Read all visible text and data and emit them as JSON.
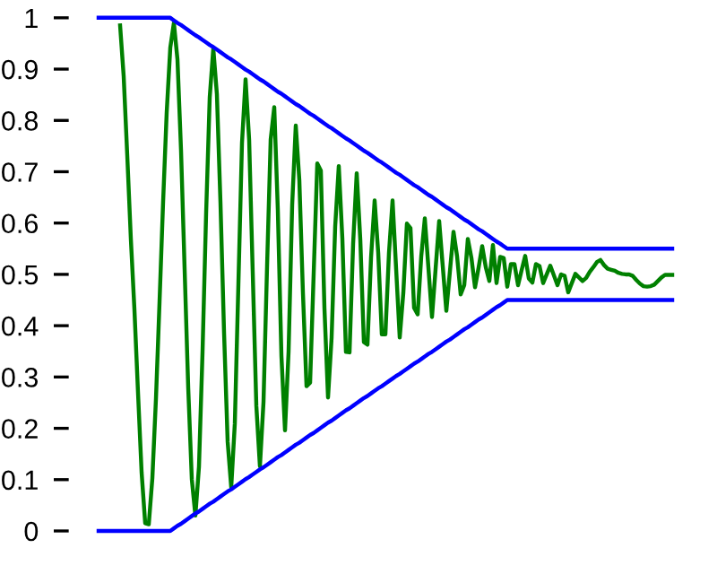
{
  "chart_data": {
    "type": "line",
    "tick_labels": "y",
    "marker": "none",
    "line_style": "solid",
    "grid": false,
    "ylim": [
      0,
      1
    ],
    "yticks": [
      0,
      0.1,
      0.2,
      0.3,
      0.4,
      0.5,
      0.6,
      0.7,
      0.8,
      0.9,
      1
    ],
    "categories": [
      null,
      null,
      null,
      null,
      null,
      null,
      null,
      null,
      null,
      null,
      null,
      null,
      null,
      null,
      null,
      null,
      null,
      null,
      null,
      null,
      null,
      null,
      null,
      null,
      null,
      null,
      null,
      null,
      null,
      null,
      null,
      null,
      null,
      null,
      null,
      null,
      null,
      null,
      null,
      null,
      null,
      null,
      null,
      null,
      null,
      null,
      null,
      null,
      null,
      null,
      null,
      null,
      null,
      null,
      null,
      null,
      null,
      null,
      null,
      null,
      null,
      null,
      null,
      null,
      null,
      null,
      null,
      null,
      null,
      null,
      null,
      null,
      null,
      null,
      null,
      null,
      null,
      null,
      null,
      null,
      null,
      null,
      null,
      null,
      null,
      null,
      null,
      null,
      null,
      null,
      null,
      null,
      null,
      null,
      null,
      null,
      null,
      null,
      null,
      null,
      null,
      null,
      null,
      null,
      null,
      null,
      null,
      null,
      null,
      null,
      null,
      null,
      null,
      null,
      null,
      null,
      null,
      null,
      null,
      null,
      null,
      null,
      null,
      null,
      null,
      null,
      null,
      null,
      null,
      null,
      null,
      null,
      null,
      null,
      null,
      null,
      null,
      null,
      null,
      null,
      null,
      null,
      null,
      null,
      null,
      null,
      null,
      null,
      null,
      null,
      null,
      null,
      null,
      null,
      null,
      null,
      null,
      null,
      null,
      null,
      null
    ],
    "series": [
      {
        "color": "#0000ff",
        "values": [
          1,
          1,
          1,
          1,
          1,
          1,
          1,
          1,
          1,
          1,
          1,
          1,
          1,
          1,
          1,
          1,
          1,
          1,
          1,
          1,
          1,
          0.995,
          0.99,
          0.986,
          0.981,
          0.976,
          0.971,
          0.966,
          0.962,
          0.957,
          0.952,
          0.947,
          0.943,
          0.938,
          0.933,
          0.928,
          0.923,
          0.919,
          0.914,
          0.909,
          0.904,
          0.899,
          0.895,
          0.89,
          0.885,
          0.88,
          0.876,
          0.871,
          0.866,
          0.861,
          0.856,
          0.852,
          0.847,
          0.842,
          0.837,
          0.832,
          0.828,
          0.823,
          0.818,
          0.813,
          0.809,
          0.804,
          0.799,
          0.794,
          0.789,
          0.785,
          0.78,
          0.775,
          0.77,
          0.765,
          0.761,
          0.756,
          0.751,
          0.746,
          0.741,
          0.737,
          0.732,
          0.727,
          0.722,
          0.718,
          0.713,
          0.708,
          0.703,
          0.698,
          0.694,
          0.689,
          0.684,
          0.679,
          0.674,
          0.67,
          0.665,
          0.66,
          0.655,
          0.651,
          0.646,
          0.641,
          0.636,
          0.631,
          0.627,
          0.622,
          0.617,
          0.612,
          0.607,
          0.603,
          0.598,
          0.593,
          0.588,
          0.584,
          0.579,
          0.574,
          0.569,
          0.564,
          0.56,
          0.555,
          0.55,
          0.55,
          0.55,
          0.55,
          0.55,
          0.55,
          0.55,
          0.55,
          0.55,
          0.55,
          0.55,
          0.55,
          0.55,
          0.55,
          0.55,
          0.55,
          0.55,
          0.55,
          0.55,
          0.55,
          0.55,
          0.55,
          0.55,
          0.55,
          0.55,
          0.55,
          0.55,
          0.55,
          0.55,
          0.55,
          0.55,
          0.55,
          0.55,
          0.55,
          0.55,
          0.55,
          0.55,
          0.55,
          0.55,
          0.55,
          0.55,
          0.55,
          0.55,
          0.55,
          0.55,
          0.55,
          0.55
        ]
      },
      {
        "color": "#0000ff",
        "values": [
          0,
          0,
          0,
          0,
          0,
          0,
          0,
          0,
          0,
          0,
          0,
          0,
          0,
          0,
          0,
          0,
          0,
          0,
          0,
          0,
          0,
          0.005,
          0.01,
          0.014,
          0.019,
          0.024,
          0.029,
          0.034,
          0.038,
          0.043,
          0.048,
          0.053,
          0.057,
          0.062,
          0.067,
          0.072,
          0.077,
          0.081,
          0.086,
          0.091,
          0.096,
          0.101,
          0.105,
          0.11,
          0.115,
          0.12,
          0.124,
          0.129,
          0.134,
          0.139,
          0.144,
          0.148,
          0.153,
          0.158,
          0.163,
          0.168,
          0.172,
          0.177,
          0.182,
          0.187,
          0.191,
          0.196,
          0.201,
          0.206,
          0.211,
          0.215,
          0.22,
          0.225,
          0.23,
          0.235,
          0.239,
          0.244,
          0.249,
          0.254,
          0.259,
          0.263,
          0.268,
          0.273,
          0.278,
          0.282,
          0.287,
          0.292,
          0.297,
          0.302,
          0.306,
          0.311,
          0.316,
          0.321,
          0.326,
          0.33,
          0.335,
          0.34,
          0.345,
          0.349,
          0.354,
          0.359,
          0.364,
          0.369,
          0.373,
          0.378,
          0.383,
          0.388,
          0.393,
          0.397,
          0.402,
          0.407,
          0.412,
          0.416,
          0.421,
          0.426,
          0.431,
          0.436,
          0.44,
          0.445,
          0.45,
          0.45,
          0.45,
          0.45,
          0.45,
          0.45,
          0.45,
          0.45,
          0.45,
          0.45,
          0.45,
          0.45,
          0.45,
          0.45,
          0.45,
          0.45,
          0.45,
          0.45,
          0.45,
          0.45,
          0.45,
          0.45,
          0.45,
          0.45,
          0.45,
          0.45,
          0.45,
          0.45,
          0.45,
          0.45,
          0.45,
          0.45,
          0.45,
          0.45,
          0.45,
          0.45,
          0.45,
          0.45,
          0.45,
          0.45,
          0.45,
          0.45,
          0.45,
          0.45,
          0.45,
          0.45,
          0.45
        ]
      },
      {
        "color": "#008000",
        "values": [
          null,
          null,
          null,
          null,
          null,
          null,
          0.985,
          0.886,
          0.731,
          0.569,
          0.431,
          0.269,
          0.114,
          0.015,
          0.013,
          0.103,
          0.257,
          0.446,
          0.642,
          0.816,
          0.942,
          0.99,
          0.919,
          0.741,
          0.51,
          0.279,
          0.101,
          0.03,
          0.125,
          0.35,
          0.62,
          0.845,
          0.94,
          0.851,
          0.639,
          0.386,
          0.174,
          0.085,
          0.209,
          0.482,
          0.756,
          0.88,
          0.762,
          0.503,
          0.244,
          0.126,
          0.251,
          0.517,
          0.763,
          0.826,
          0.625,
          0.341,
          0.196,
          0.35,
          0.636,
          0.79,
          0.683,
          0.464,
          0.282,
          0.289,
          0.502,
          0.716,
          0.702,
          0.434,
          0.26,
          0.377,
          0.594,
          0.711,
          0.569,
          0.349,
          0.348,
          0.56,
          0.697,
          0.568,
          0.368,
          0.363,
          0.533,
          0.644,
          0.542,
          0.383,
          0.383,
          0.542,
          0.644,
          0.51,
          0.377,
          0.464,
          0.599,
          0.59,
          0.435,
          0.422,
          0.535,
          0.609,
          0.513,
          0.417,
          0.51,
          0.604,
          0.516,
          0.429,
          0.506,
          0.583,
          0.535,
          0.461,
          0.479,
          0.569,
          0.532,
          0.475,
          0.513,
          0.555,
          0.514,
          0.487,
          0.557,
          0.483,
          0.534,
          0.532,
          0.476,
          0.52,
          0.52,
          0.479,
          0.508,
          0.536,
          0.492,
          0.484,
          0.52,
          0.516,
          0.483,
          0.5,
          0.517,
          0.498,
          0.479,
          0.5,
          0.497,
          0.465,
          0.483,
          0.501,
          0.494,
          0.487,
          0.493,
          0.505,
          0.514,
          0.524,
          0.528,
          0.518,
          0.511,
          0.509,
          0.507,
          0.503,
          0.501,
          0.5,
          0.5,
          0.497,
          0.489,
          0.482,
          0.477,
          0.476,
          0.477,
          0.48,
          0.487,
          0.494,
          0.499,
          0.499,
          0.499
        ]
      }
    ]
  }
}
